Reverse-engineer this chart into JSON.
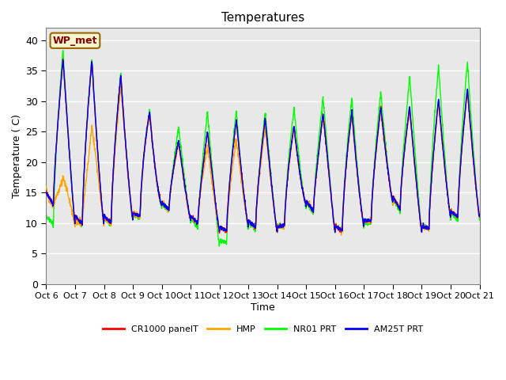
{
  "title": "Temperatures",
  "xlabel": "Time",
  "ylabel": "Temperature ( C)",
  "ylim": [
    0,
    42
  ],
  "yticks": [
    0,
    5,
    10,
    15,
    20,
    25,
    30,
    35,
    40
  ],
  "bg_color": "#e8e8e8",
  "grid_color": "white",
  "annotation_text": "WP_met",
  "annotation_bg": "#f5f5d0",
  "annotation_border": "#996600",
  "annotation_text_color": "#880000",
  "x_tick_labels": [
    "Oct 6",
    "Oct 7",
    "Oct 8",
    "Oct 9",
    "Oct 10",
    "Oct 11",
    "Oct 12",
    "Oct 13",
    "Oct 14",
    "Oct 15",
    "Oct 16",
    "Oct 17",
    "Oct 18",
    "Oct 19",
    "Oct 20",
    "Oct 21"
  ],
  "series_colors": [
    "red",
    "orange",
    "lime",
    "blue"
  ],
  "series_labels": [
    "CR1000 panelT",
    "HMP",
    "NR01 PRT",
    "AM25T PRT"
  ],
  "line_width": 1.0,
  "n_days": 15,
  "pts_per_day": 144,
  "cr_peaks": [
    35.0,
    38.5,
    35.2,
    33.5,
    24.2,
    23.0,
    26.5,
    27.2,
    27.1,
    25.0,
    30.0,
    27.0,
    30.5,
    28.0,
    32.0,
    33.0
  ],
  "cr_troughs": [
    14.0,
    9.8,
    9.8,
    10.5,
    12.8,
    10.5,
    8.5,
    9.5,
    8.5,
    13.0,
    8.5,
    9.5,
    13.5,
    8.5,
    11.0,
    11.0
  ],
  "hmp_peaks": [
    15.5,
    19.0,
    31.0,
    33.5,
    24.0,
    22.5,
    22.8,
    24.5,
    26.7,
    24.5,
    30.0,
    26.5,
    30.0,
    27.5,
    31.5,
    32.5
  ],
  "hmp_troughs": [
    14.0,
    9.8,
    9.8,
    10.5,
    12.8,
    10.5,
    8.5,
    9.5,
    8.5,
    13.0,
    8.5,
    9.5,
    13.5,
    8.5,
    11.0,
    11.0
  ],
  "nr_peaks": [
    38.0,
    39.0,
    35.5,
    34.0,
    24.5,
    26.5,
    29.8,
    27.5,
    29.0,
    28.8,
    32.2,
    29.5,
    33.0,
    35.0,
    36.5,
    33.5
  ],
  "nr_troughs": [
    9.8,
    9.5,
    9.6,
    10.2,
    12.5,
    10.2,
    6.0,
    9.0,
    8.5,
    12.5,
    8.5,
    9.0,
    13.0,
    8.5,
    10.5,
    10.5
  ],
  "am_peaks": [
    35.0,
    38.5,
    35.3,
    33.5,
    24.2,
    23.2,
    26.5,
    27.2,
    27.1,
    25.1,
    30.1,
    27.1,
    30.5,
    28.1,
    32.1,
    33.0
  ],
  "am_troughs": [
    14.0,
    9.8,
    9.8,
    10.5,
    12.8,
    10.5,
    8.5,
    9.5,
    8.5,
    13.0,
    8.5,
    9.5,
    13.5,
    8.5,
    11.0,
    11.0
  ],
  "peak_phase": 0.58,
  "trough_phase": 0.25
}
